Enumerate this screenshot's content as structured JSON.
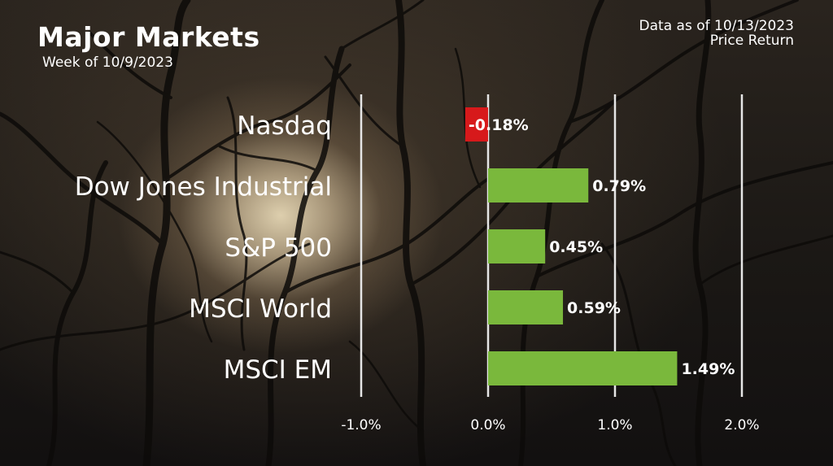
{
  "header": {
    "title": "Major Markets",
    "subtitle": "Week of 10/9/2023",
    "as_of": "Data as of 10/13/2023",
    "return_type": "Price Return"
  },
  "colors": {
    "positive": "#7ab83c",
    "negative": "#d7191b",
    "gridline": "#e6e6e6",
    "text": "#ffffff"
  },
  "chart_data": {
    "type": "bar",
    "orientation": "horizontal",
    "title": "Major Markets",
    "subtitle": "Week of 10/9/2023",
    "categories": [
      "Nasdaq",
      "Dow Jones Industrial",
      "S&P 500",
      "MSCI World",
      "MSCI EM"
    ],
    "values": [
      -0.18,
      0.79,
      0.45,
      0.59,
      1.49
    ],
    "data_labels": [
      "-0.18%",
      "0.79%",
      "0.45%",
      "0.59%",
      "1.49%"
    ],
    "xlim": [
      -1.0,
      2.0
    ],
    "xticks": [
      -1.0,
      0.0,
      1.0,
      2.0
    ],
    "xtick_labels": [
      "-1.0%",
      "0.0%",
      "1.0%",
      "2.0%"
    ],
    "grid": true,
    "xlabel": "",
    "ylabel": ""
  }
}
